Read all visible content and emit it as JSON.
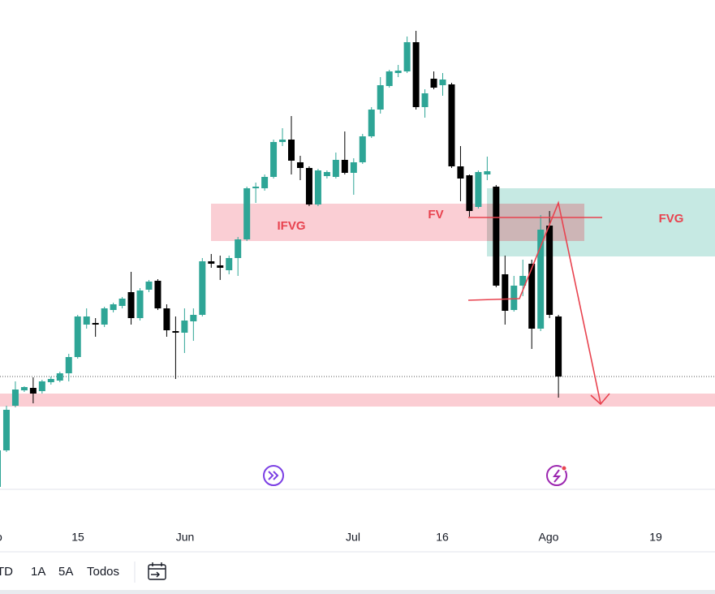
{
  "chart_data": {
    "type": "candlestick",
    "open": [
      100,
      145,
      200,
      219,
      222,
      218,
      229,
      231,
      240,
      260,
      300,
      302,
      300,
      318,
      323,
      340,
      308,
      343,
      354,
      320,
      292,
      290,
      304,
      312,
      378,
      373,
      367,
      382,
      405,
      468,
      468,
      482,
      525,
      528,
      500,
      493,
      448,
      483,
      482,
      503,
      487,
      500,
      532,
      565,
      594,
      610,
      612,
      648,
      568,
      603,
      595,
      596,
      495,
      484,
      445,
      485,
      470,
      362,
      318,
      348,
      375,
      295,
      422,
      310
    ],
    "high": [
      145,
      200,
      230,
      224,
      235,
      232,
      236,
      242,
      264,
      312,
      320,
      308,
      322,
      327,
      334,
      365,
      345,
      355,
      356,
      325,
      310,
      320,
      320,
      382,
      387,
      385,
      385,
      408,
      470,
      475,
      485,
      528,
      542,
      557,
      508,
      495,
      492,
      490,
      512,
      538,
      505,
      535,
      568,
      605,
      614,
      620,
      655,
      662,
      590,
      612,
      610,
      598,
      520,
      485,
      490,
      507,
      472,
      385,
      360,
      380,
      380,
      435,
      440,
      312
    ],
    "low": [
      100,
      143,
      198,
      217,
      203,
      215,
      226,
      229,
      230,
      258,
      295,
      285,
      297,
      315,
      320,
      300,
      305,
      340,
      318,
      285,
      233,
      265,
      280,
      310,
      370,
      355,
      362,
      360,
      403,
      450,
      465,
      480,
      520,
      485,
      478,
      446,
      446,
      480,
      480,
      485,
      460,
      498,
      530,
      560,
      592,
      605,
      610,
      565,
      555,
      590,
      582,
      493,
      452,
      433,
      443,
      478,
      346,
      300,
      316,
      335,
      270,
      292,
      308,
      210
    ],
    "close": [
      145,
      195,
      220,
      223,
      215,
      230,
      233,
      240,
      260,
      310,
      310,
      300,
      320,
      325,
      332,
      308,
      342,
      353,
      320,
      293,
      290,
      305,
      312,
      378,
      375,
      370,
      382,
      405,
      468,
      470,
      482,
      525,
      528,
      502,
      493,
      448,
      490,
      488,
      503,
      487,
      500,
      532,
      565,
      595,
      612,
      613,
      648,
      568,
      585,
      592,
      602,
      495,
      480,
      440,
      488,
      489,
      348,
      317,
      348,
      360,
      295,
      417,
      312,
      236
    ],
    "up_color": "#2ea596",
    "down_color": "#000000",
    "ylim": [
      97,
      700
    ],
    "x_labels": [
      "o",
      "15",
      "Jun",
      "Jul",
      "16",
      "Ago",
      "19"
    ],
    "annotations": [
      "IFVG",
      "FV",
      "FVG"
    ],
    "buttons": [
      "TD",
      "1A",
      "5A",
      "Todos"
    ]
  }
}
